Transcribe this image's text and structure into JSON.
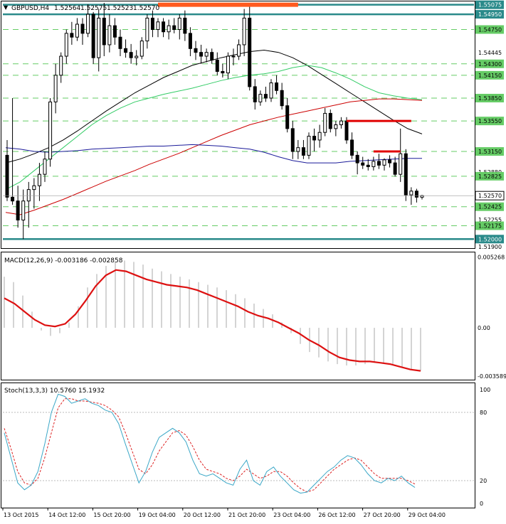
{
  "chart_data": {
    "type": "candlestick",
    "title": "GBPUSD,H4",
    "ohlc": [
      "1.52564",
      "1.52575",
      "1.52523",
      "1.52570"
    ],
    "x_ticks": [
      "13 Oct 2015",
      "14 Oct 12:00",
      "15 Oct 20:00",
      "19 Oct 04:00",
      "20 Oct 12:00",
      "21 Oct 20:00",
      "23 Oct 04:00",
      "26 Oct 12:00",
      "27 Oct 20:00",
      "29 Oct 04:00"
    ],
    "price_panel": {
      "ylim": [
        1.519,
        1.551
      ],
      "last_price": "1.52570",
      "price_labels": [
        "1.55075",
        "1.54950",
        "1.54750",
        "1.54445",
        "1.54300",
        "1.54150",
        "1.53850",
        "1.53550",
        "1.53150",
        "1.52880",
        "1.52825",
        "1.52570",
        "1.52425",
        "1.52255",
        "1.52175",
        "1.52000",
        "1.51900"
      ],
      "level_lines": [
        1.55075,
        1.5495,
        1.5475,
        1.543,
        1.5415,
        1.5385,
        1.5355,
        1.5315,
        1.52825,
        1.52425,
        1.52175,
        1.52
      ],
      "strong_levels": [
        1.55075,
        1.5495,
        1.52
      ],
      "ohlc_bars": [
        [
          1.531,
          1.533,
          1.525,
          1.5255
        ],
        [
          1.5255,
          1.5385,
          1.5245,
          1.525
        ],
        [
          1.525,
          1.527,
          1.5215,
          1.5225
        ],
        [
          1.5225,
          1.5265,
          1.52,
          1.525
        ],
        [
          1.525,
          1.5275,
          1.5215,
          1.5265
        ],
        [
          1.5265,
          1.528,
          1.524,
          1.527
        ],
        [
          1.527,
          1.53,
          1.525,
          1.5285
        ],
        [
          1.5285,
          1.5315,
          1.5275,
          1.5305
        ],
        [
          1.5305,
          1.5385,
          1.5295,
          1.538
        ],
        [
          1.538,
          1.543,
          1.5365,
          1.5415
        ],
        [
          1.5415,
          1.5445,
          1.5405,
          1.544
        ],
        [
          1.544,
          1.5475,
          1.543,
          1.547
        ],
        [
          1.547,
          1.5485,
          1.5455,
          1.5465
        ],
        [
          1.5465,
          1.549,
          1.546,
          1.5482
        ],
        [
          1.5482,
          1.549,
          1.5455,
          1.547
        ],
        [
          1.547,
          1.5508,
          1.5465,
          1.5495
        ],
        [
          1.5495,
          1.5498,
          1.543,
          1.5438
        ],
        [
          1.5438,
          1.5502,
          1.542,
          1.549
        ],
        [
          1.549,
          1.551,
          1.544,
          1.5455
        ],
        [
          1.5455,
          1.5495,
          1.5445,
          1.548
        ],
        [
          1.548,
          1.549,
          1.5455,
          1.5465
        ],
        [
          1.5465,
          1.5475,
          1.544,
          1.545
        ],
        [
          1.545,
          1.5462,
          1.5438,
          1.5445
        ],
        [
          1.5445,
          1.5456,
          1.543,
          1.5438
        ],
        [
          1.5438,
          1.5448,
          1.5428,
          1.544
        ],
        [
          1.544,
          1.5465,
          1.5436,
          1.546
        ],
        [
          1.546,
          1.5495,
          1.545,
          1.549
        ],
        [
          1.549,
          1.55,
          1.5465,
          1.5475
        ],
        [
          1.5475,
          1.549,
          1.5465,
          1.5485
        ],
        [
          1.5485,
          1.549,
          1.5465,
          1.5472
        ],
        [
          1.5472,
          1.5488,
          1.5462,
          1.548
        ],
        [
          1.548,
          1.549,
          1.547,
          1.5475
        ],
        [
          1.5475,
          1.5495,
          1.5462,
          1.549
        ],
        [
          1.549,
          1.55,
          1.546,
          1.547
        ],
        [
          1.547,
          1.5478,
          1.544,
          1.545
        ],
        [
          1.545,
          1.546,
          1.5435,
          1.5445
        ],
        [
          1.5445,
          1.5455,
          1.543,
          1.544
        ],
        [
          1.544,
          1.545,
          1.5432,
          1.5445
        ],
        [
          1.5445,
          1.545,
          1.543,
          1.5435
        ],
        [
          1.5435,
          1.5445,
          1.5415,
          1.542
        ],
        [
          1.542,
          1.543,
          1.5412,
          1.5418
        ],
        [
          1.5418,
          1.5445,
          1.541,
          1.544
        ],
        [
          1.544,
          1.545,
          1.5428,
          1.544
        ],
        [
          1.544,
          1.5462,
          1.5435,
          1.5455
        ],
        [
          1.5455,
          1.5502,
          1.544,
          1.549
        ],
        [
          1.549,
          1.551,
          1.5395,
          1.54
        ],
        [
          1.54,
          1.541,
          1.537,
          1.538
        ],
        [
          1.538,
          1.5395,
          1.5375,
          1.539
        ],
        [
          1.539,
          1.54,
          1.538,
          1.5385
        ],
        [
          1.5385,
          1.541,
          1.538,
          1.5405
        ],
        [
          1.5405,
          1.5415,
          1.539,
          1.5395
        ],
        [
          1.5395,
          1.5405,
          1.537,
          1.5375
        ],
        [
          1.5375,
          1.5385,
          1.534,
          1.5345
        ],
        [
          1.5345,
          1.5355,
          1.5305,
          1.5315
        ],
        [
          1.5315,
          1.533,
          1.5305,
          1.532
        ],
        [
          1.532,
          1.533,
          1.5305,
          1.531
        ],
        [
          1.531,
          1.534,
          1.5305,
          1.5335
        ],
        [
          1.5335,
          1.5345,
          1.5315,
          1.533
        ],
        [
          1.533,
          1.535,
          1.532,
          1.534
        ],
        [
          1.534,
          1.5372,
          1.5335,
          1.5365
        ],
        [
          1.5365,
          1.537,
          1.534,
          1.5345
        ],
        [
          1.5345,
          1.5355,
          1.5335,
          1.535
        ],
        [
          1.535,
          1.536,
          1.5345,
          1.5355
        ],
        [
          1.5355,
          1.536,
          1.5325,
          1.533
        ],
        [
          1.533,
          1.534,
          1.5305,
          1.531
        ],
        [
          1.531,
          1.5315,
          1.5285,
          1.53
        ],
        [
          1.53,
          1.5308,
          1.5292,
          1.5297
        ],
        [
          1.5297,
          1.5305,
          1.529,
          1.5295
        ],
        [
          1.5295,
          1.5308,
          1.529,
          1.5302
        ],
        [
          1.5302,
          1.5312,
          1.5292,
          1.5297
        ],
        [
          1.5297,
          1.5306,
          1.529,
          1.5304
        ],
        [
          1.5304,
          1.531,
          1.5294,
          1.53
        ],
        [
          1.53,
          1.5308,
          1.5282,
          1.5285
        ],
        [
          1.5285,
          1.5345,
          1.5275,
          1.5312
        ],
        [
          1.5312,
          1.5318,
          1.525,
          1.5258
        ],
        [
          1.5258,
          1.5268,
          1.5245,
          1.5263
        ],
        [
          1.5263,
          1.5266,
          1.5248,
          1.5255
        ],
        [
          1.5255,
          1.5258,
          1.5252,
          1.5257
        ]
      ],
      "ma_series": [
        {
          "color": "#000000",
          "values": [
            1.53,
            1.5305,
            1.5312,
            1.532,
            1.533,
            1.5342,
            1.5355,
            1.5368,
            1.538,
            1.5392,
            1.5402,
            1.5412,
            1.542,
            1.5428,
            1.5433,
            1.5438,
            1.5442,
            1.5446,
            1.5448,
            1.5445,
            1.5438,
            1.5428,
            1.5416,
            1.5404,
            1.5392,
            1.538,
            1.5368,
            1.5356,
            1.5345,
            1.5338
          ]
        },
        {
          "color": "#33cc66",
          "values": [
            1.5265,
            1.5275,
            1.529,
            1.5305,
            1.532,
            1.5335,
            1.535,
            1.5362,
            1.5372,
            1.538,
            1.5385,
            1.539,
            1.5394,
            1.5398,
            1.5403,
            1.5408,
            1.5412,
            1.5415,
            1.5417,
            1.542,
            1.5425,
            1.5428,
            1.5425,
            1.5418,
            1.541,
            1.54,
            1.5392,
            1.5388,
            1.5385,
            1.5383
          ]
        },
        {
          "color": "#cc0000",
          "values": [
            1.5235,
            1.5232,
            1.5238,
            1.5245,
            1.5252,
            1.526,
            1.5268,
            1.5276,
            1.5283,
            1.529,
            1.5298,
            1.5305,
            1.5312,
            1.532,
            1.5328,
            1.5336,
            1.5343,
            1.535,
            1.5355,
            1.536,
            1.5364,
            1.5368,
            1.5372,
            1.5376,
            1.538,
            1.5382,
            1.5384,
            1.5384,
            1.5383,
            1.5382
          ]
        },
        {
          "color": "#1a1a99",
          "values": [
            1.532,
            1.5318,
            1.5315,
            1.5314,
            1.5315,
            1.5316,
            1.5318,
            1.5319,
            1.532,
            1.5321,
            1.5322,
            1.5322,
            1.5323,
            1.5324,
            1.5323,
            1.5322,
            1.532,
            1.5318,
            1.5314,
            1.5308,
            1.5303,
            1.53,
            1.53,
            1.53,
            1.5302,
            1.5303,
            1.5304,
            1.5305,
            1.5306,
            1.5306
          ]
        }
      ],
      "resistance_segments": [
        {
          "from_bar": 28,
          "to_bar": 54,
          "price": 1.55075,
          "color": "#ff5a1f"
        },
        {
          "from_bar": 63,
          "to_bar": 75,
          "price": 1.5355,
          "color": "#e00000"
        },
        {
          "from_bar": 68,
          "to_bar": 73,
          "price": 1.5315,
          "color": "#e00000"
        }
      ]
    },
    "macd_panel": {
      "label": "MACD(12,26,9) -0.003186 -0.002858",
      "ylim": [
        -0.00375,
        0.0055
      ],
      "tick_labels": [
        "0.005268",
        "0.00",
        "-0.003589"
      ],
      "tick_values": [
        0.005268,
        0.0,
        -0.003589
      ],
      "histogram": [
        0.0038,
        0.0034,
        0.0024,
        0.0012,
        -0.0002,
        -0.0006,
        -0.0004,
        0.0004,
        0.0016,
        0.003,
        0.004,
        0.0046,
        0.0049,
        0.005,
        0.0049,
        0.0047,
        0.0044,
        0.0042,
        0.004,
        0.0038,
        0.0036,
        0.0034,
        0.0032,
        0.003,
        0.0028,
        0.0025,
        0.0022,
        0.0018,
        0.0014,
        0.001,
        0.0004,
        -0.0004,
        -0.0012,
        -0.0018,
        -0.0022,
        -0.0025,
        -0.0027,
        -0.0028,
        -0.0028,
        -0.0027,
        -0.0026,
        -0.0026,
        -0.0027,
        -0.0029,
        -0.0031,
        -0.0032
      ],
      "signal": [
        0.0022,
        0.0018,
        0.0012,
        0.0006,
        0.0002,
        0.0001,
        0.0003,
        0.001,
        0.002,
        0.0031,
        0.0039,
        0.0043,
        0.0042,
        0.0039,
        0.0036,
        0.0034,
        0.0032,
        0.0031,
        0.003,
        0.0028,
        0.0025,
        0.0022,
        0.0019,
        0.0016,
        0.0012,
        0.0009,
        0.0007,
        0.0004,
        0.0,
        -0.0004,
        -0.0009,
        -0.0013,
        -0.0018,
        -0.0022,
        -0.0024,
        -0.0025,
        -0.0025,
        -0.0026,
        -0.0027,
        -0.0029,
        -0.0031,
        -0.0032
      ]
    },
    "stoch_panel": {
      "label": "Stoch(13,3,3) 10.5760 15.1932",
      "ylim": [
        0,
        100
      ],
      "tick_labels": [
        "100",
        "80",
        "20",
        "0"
      ],
      "tick_values": [
        100,
        80,
        20,
        0
      ],
      "main": [
        62,
        40,
        18,
        12,
        16,
        28,
        52,
        80,
        96,
        94,
        88,
        90,
        92,
        88,
        86,
        82,
        80,
        70,
        52,
        35,
        18,
        28,
        45,
        58,
        62,
        66,
        62,
        54,
        38,
        26,
        24,
        26,
        22,
        18,
        16,
        30,
        38,
        20,
        16,
        28,
        32,
        24,
        18,
        12,
        9,
        10,
        16,
        22,
        28,
        32,
        38,
        42,
        40,
        34,
        26,
        20,
        18,
        22,
        20,
        24,
        18,
        14
      ],
      "signal": [
        66,
        48,
        28,
        18,
        16,
        22,
        40,
        62,
        84,
        92,
        92,
        90,
        90,
        89,
        88,
        86,
        82,
        76,
        62,
        46,
        30,
        26,
        34,
        46,
        54,
        62,
        64,
        60,
        50,
        38,
        30,
        28,
        26,
        22,
        20,
        24,
        30,
        26,
        22,
        24,
        28,
        28,
        24,
        18,
        13,
        10,
        12,
        18,
        24,
        30,
        34,
        38,
        40,
        38,
        32,
        26,
        22,
        22,
        22,
        22,
        20,
        17
      ]
    }
  }
}
